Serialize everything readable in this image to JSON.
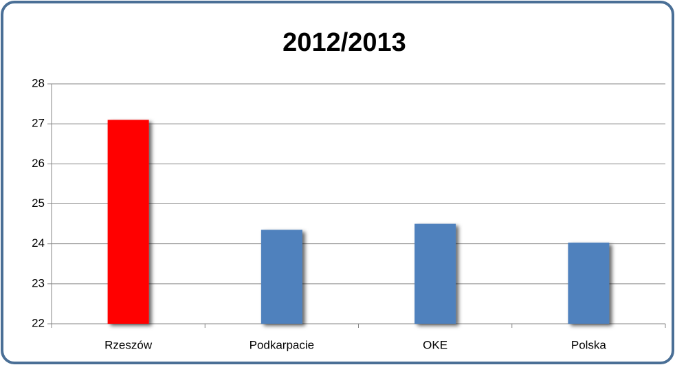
{
  "chart_data": {
    "type": "bar",
    "title": "2012/2013",
    "categories": [
      "Rzeszów",
      "Podkarpacie",
      "OKE",
      "Polska"
    ],
    "values": [
      27.1,
      24.35,
      24.5,
      24.03
    ],
    "colors": [
      "#ff0000",
      "#4f81bd",
      "#4f81bd",
      "#4f81bd"
    ],
    "ylim": [
      22,
      28
    ],
    "yticks": [
      22,
      23,
      24,
      25,
      26,
      27,
      28
    ],
    "grid": true
  }
}
